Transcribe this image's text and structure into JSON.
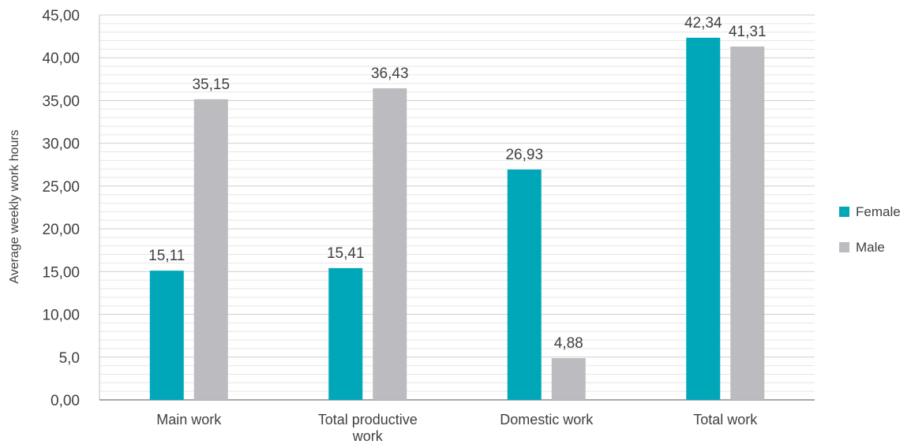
{
  "chart_data": {
    "type": "bar",
    "title": "",
    "xlabel": "",
    "ylabel": "Average weekly work hours",
    "ylim": [
      0,
      45
    ],
    "yticks": [
      {
        "value": 0,
        "label": "0,00"
      },
      {
        "value": 5,
        "label": "5,0"
      },
      {
        "value": 10,
        "label": "10,00"
      },
      {
        "value": 15,
        "label": "15,00"
      },
      {
        "value": 20,
        "label": "20,00"
      },
      {
        "value": 25,
        "label": "25,00"
      },
      {
        "value": 30,
        "label": "30,00"
      },
      {
        "value": 35,
        "label": "35,00"
      },
      {
        "value": 40,
        "label": "40,00"
      },
      {
        "value": 45,
        "label": "45,00"
      }
    ],
    "categories": [
      [
        "Main work"
      ],
      [
        "Total productive",
        "work"
      ],
      [
        "Domestic work"
      ],
      [
        "Total work"
      ]
    ],
    "series": [
      {
        "name": "Female",
        "color": "#00A7B8",
        "values": [
          15.11,
          15.41,
          26.93,
          42.34
        ],
        "labels": [
          "15,11",
          "15,41",
          "26,93",
          "42,34"
        ]
      },
      {
        "name": "Male",
        "color": "#BCBCC0",
        "values": [
          35.15,
          36.43,
          4.88,
          41.31
        ],
        "labels": [
          "35,15",
          "36,43",
          "4,88",
          "41,31"
        ]
      }
    ],
    "grid": true,
    "legend_position": "right"
  }
}
